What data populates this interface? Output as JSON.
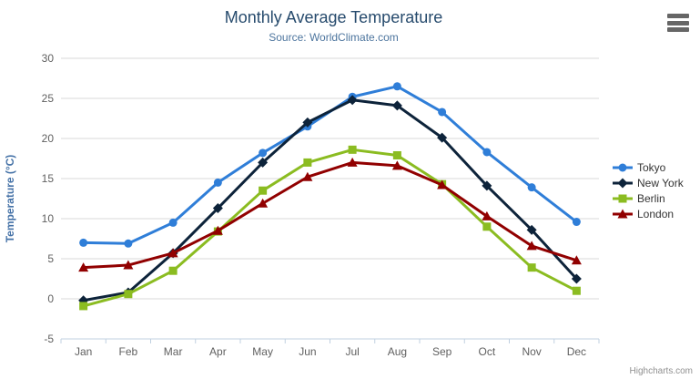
{
  "chart": {
    "title": "Monthly Average Temperature",
    "subtitle": "Source: WorldClimate.com",
    "credit": "Highcharts.com",
    "context_menu_icon": "hamburger-menu-icon",
    "colors": {
      "title": "#274b6d",
      "subtitle": "#4d759e",
      "axis_title": "#4572a7",
      "tick_label": "#606060",
      "grid_line": "#d8d8d8",
      "axis_line": "#c0d0e0",
      "legend_text": "#333333",
      "credit": "#909090",
      "menu_icon": "#666666"
    }
  },
  "chart_data": {
    "type": "line",
    "title": "Monthly Average Temperature",
    "subtitle": "Source: WorldClimate.com",
    "xlabel": "",
    "ylabel": "Temperature (°C)",
    "ylim": [
      -5,
      30
    ],
    "yticks": [
      -5,
      0,
      5,
      10,
      15,
      20,
      25,
      30
    ],
    "grid": true,
    "legend_position": "right",
    "categories": [
      "Jan",
      "Feb",
      "Mar",
      "Apr",
      "May",
      "Jun",
      "Jul",
      "Aug",
      "Sep",
      "Oct",
      "Nov",
      "Dec"
    ],
    "series": [
      {
        "name": "Tokyo",
        "color": "#2f7ed8",
        "marker": "circle",
        "values": [
          7.0,
          6.9,
          9.5,
          14.5,
          18.2,
          21.5,
          25.2,
          26.5,
          23.3,
          18.3,
          13.9,
          9.6
        ]
      },
      {
        "name": "New York",
        "color": "#0d233a",
        "marker": "diamond",
        "values": [
          -0.2,
          0.8,
          5.7,
          11.3,
          17.0,
          22.0,
          24.8,
          24.1,
          20.1,
          14.1,
          8.6,
          2.5
        ]
      },
      {
        "name": "Berlin",
        "color": "#8bbc21",
        "marker": "square",
        "values": [
          -0.9,
          0.6,
          3.5,
          8.4,
          13.5,
          17.0,
          18.6,
          17.9,
          14.3,
          9.0,
          3.9,
          1.0
        ]
      },
      {
        "name": "London",
        "color": "#910000",
        "marker": "triangle",
        "values": [
          3.9,
          4.2,
          5.7,
          8.5,
          11.9,
          15.2,
          17.0,
          16.6,
          14.2,
          10.3,
          6.6,
          4.8
        ]
      }
    ]
  }
}
